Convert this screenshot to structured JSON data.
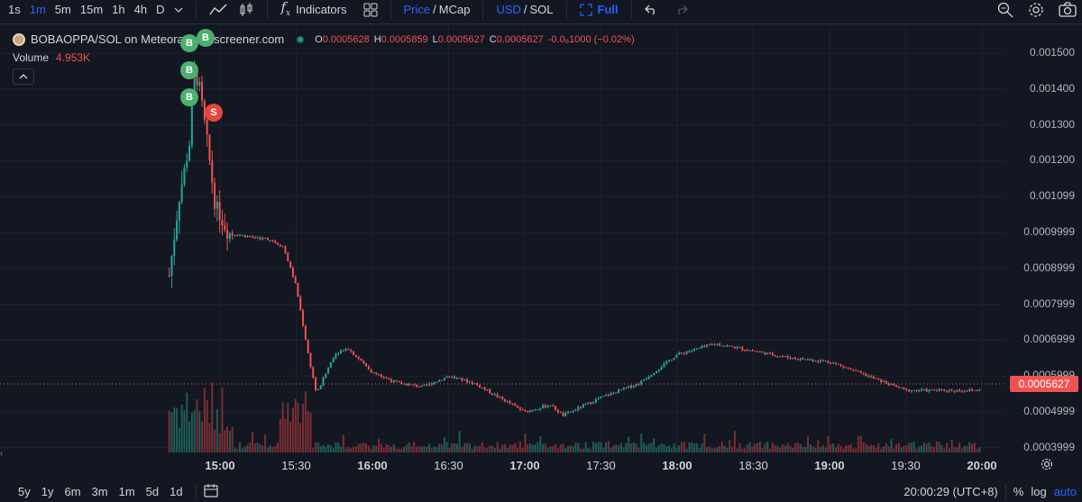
{
  "toolbar": {
    "timeframes": [
      "1s",
      "1m",
      "5m",
      "15m",
      "1h",
      "4h",
      "D"
    ],
    "active_timeframe": "1m",
    "indicators_label": "Indicators",
    "price_label": "Price",
    "mcap_label": "MCap",
    "slash": "/",
    "usd_label": "USD",
    "sol_label": "SOL",
    "full_label": "Full"
  },
  "legend": {
    "symbol": "BOBAOPPA/SOL on Meteora",
    "source": "dexscreener.com",
    "open_label": "O",
    "open": "0.0005628",
    "high_label": "H",
    "high": "0.0005859",
    "low_label": "L",
    "low": "0.0005627",
    "close_label": "C",
    "close": "0.0005627",
    "change": "-0.0₆1000 (−0.02%)",
    "volume_label": "Volume",
    "volume": "4.953K"
  },
  "price_axis": {
    "labels": [
      "0.001500",
      "0.001400",
      "0.001300",
      "0.001200",
      "0.001099",
      "0.0009999",
      "0.0008999",
      "0.0007999",
      "0.0006999",
      "0.0005999",
      "0.0004999",
      "0.0003999"
    ],
    "current_price": "0.0005627"
  },
  "time_axis": {
    "labels": [
      "15:00",
      "15:30",
      "16:00",
      "16:30",
      "17:00",
      "17:30",
      "18:00",
      "18:30",
      "19:00",
      "19:30",
      "20:00"
    ]
  },
  "trade_markers": [
    {
      "side": "B",
      "label": "B"
    },
    {
      "side": "B",
      "label": "B"
    },
    {
      "side": "B",
      "label": "B"
    },
    {
      "side": "B",
      "label": "B"
    },
    {
      "side": "S",
      "label": "S"
    }
  ],
  "bottom": {
    "ranges": [
      "5y",
      "1y",
      "6m",
      "3m",
      "1m",
      "5d",
      "1d"
    ],
    "clock": "20:00:29 (UTC+8)",
    "percent_label": "%",
    "log_label": "log",
    "auto_label": "auto"
  },
  "colors": {
    "background": "#131722",
    "up": "#26a69a",
    "down": "#ef5350",
    "accent": "#2962ff",
    "grid": "#1e222d"
  },
  "chart_data": {
    "type": "candlestick",
    "title": "BOBAOPPA/SOL on Meteora",
    "x_range": [
      "14:40",
      "20:00"
    ],
    "y_range": [
      0.00039,
      0.00153
    ],
    "price_path": [
      [
        "14:40",
        0.00088
      ],
      [
        "14:44",
        0.0011
      ],
      [
        "14:48",
        0.00125
      ],
      [
        "14:50",
        0.00145
      ],
      [
        "14:52",
        0.0014
      ],
      [
        "14:55",
        0.00125
      ],
      [
        "14:58",
        0.00108
      ],
      [
        "15:03",
        0.001
      ],
      [
        "15:10",
        0.00099
      ],
      [
        "15:20",
        0.00098
      ],
      [
        "15:25",
        0.00096
      ],
      [
        "15:30",
        0.00085
      ],
      [
        "15:35",
        0.00065
      ],
      [
        "15:38",
        0.00055
      ],
      [
        "15:45",
        0.00066
      ],
      [
        "15:50",
        0.00068
      ],
      [
        "16:00",
        0.00061
      ],
      [
        "16:10",
        0.00058
      ],
      [
        "16:20",
        0.00057
      ],
      [
        "16:30",
        0.0006
      ],
      [
        "16:40",
        0.00058
      ],
      [
        "16:50",
        0.00054
      ],
      [
        "17:00",
        0.0005
      ],
      [
        "17:10",
        0.00052
      ],
      [
        "17:15",
        0.00049
      ],
      [
        "17:30",
        0.00054
      ],
      [
        "17:45",
        0.00058
      ],
      [
        "18:00",
        0.00066
      ],
      [
        "18:15",
        0.00069
      ],
      [
        "18:30",
        0.00067
      ],
      [
        "18:45",
        0.00065
      ],
      [
        "19:00",
        0.00064
      ],
      [
        "19:15",
        0.0006
      ],
      [
        "19:30",
        0.00056
      ],
      [
        "19:45",
        0.00056
      ],
      [
        "20:00",
        0.00056
      ]
    ]
  }
}
